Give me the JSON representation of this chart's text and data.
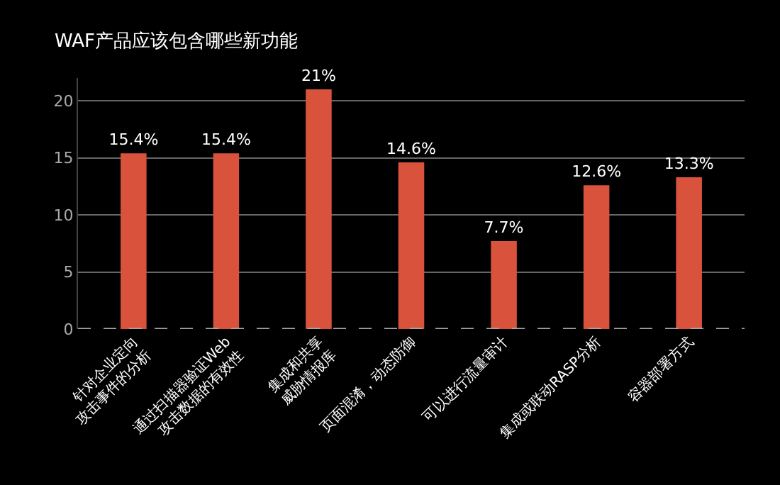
{
  "chart_data": {
    "type": "bar",
    "title": "WAF产品应该包含哪些新功能",
    "categories": [
      "针对企业定向\n攻击事件的分析",
      "通过扫描器验证Web\n攻击数据的有效性",
      "集成和共享\n威胁情报库",
      "页面混淆，动态防御",
      "可以进行流量审计",
      "集成或联动RASP分析",
      "容器部署方式"
    ],
    "values": [
      15.4,
      15.4,
      21,
      14.6,
      7.7,
      12.6,
      13.3
    ],
    "value_labels": [
      "15.4%",
      "15.4%",
      "21%",
      "14.6%",
      "7.7%",
      "12.6%",
      "13.3%"
    ],
    "color": "#d9533c",
    "ylim": [
      0,
      22
    ],
    "yticks": [
      0,
      5,
      10,
      15,
      20
    ],
    "grid": "y"
  }
}
